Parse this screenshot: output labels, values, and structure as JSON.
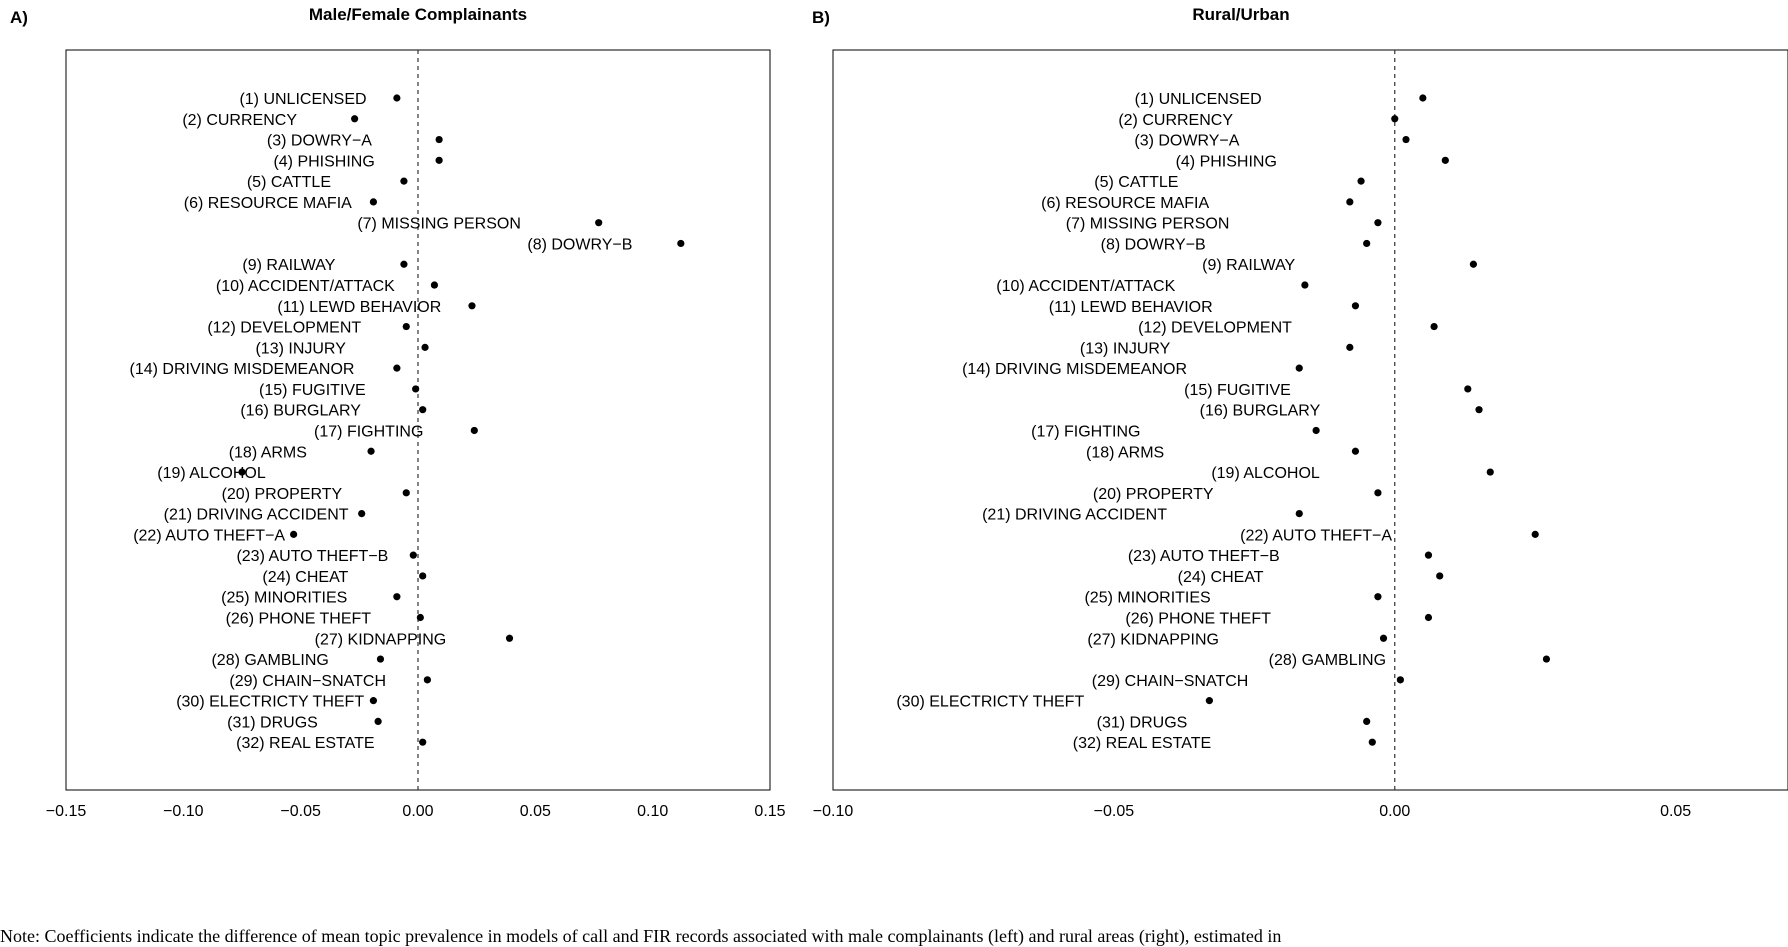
{
  "chart_data": [
    {
      "type": "scatter",
      "panel_label": "A)",
      "title": "Male/Female Complainants",
      "xlabel": "",
      "ylabel": "",
      "xlim": [
        -0.15,
        0.15
      ],
      "xticks": [
        -0.15,
        -0.1,
        -0.05,
        0.0,
        0.05,
        0.1,
        0.15
      ],
      "xtick_labels": [
        "−0.15",
        "−0.10",
        "−0.05",
        "0.00",
        "0.05",
        "0.10",
        "0.15"
      ],
      "reference_line": 0,
      "grid": false,
      "categories": [
        "(1) UNLICENSED",
        "(2) CURRENCY",
        "(3) DOWRY−A",
        "(4) PHISHING",
        "(5) CATTLE",
        "(6) RESOURCE MAFIA",
        "(7) MISSING PERSON",
        "(8) DOWRY−B",
        "(9) RAILWAY",
        "(10) ACCIDENT/ATTACK",
        "(11) LEWD BEHAVIOR",
        "(12) DEVELOPMENT",
        "(13) INJURY",
        "(14) DRIVING MISDEMEANOR",
        "(15) FUGITIVE",
        "(16) BURGLARY",
        "(17) FIGHTING",
        "(18) ARMS",
        "(19) ALCOHOL",
        "(20) PROPERTY",
        "(21) DRIVING ACCIDENT",
        "(22) AUTO THEFT−A",
        "(23) AUTO THEFT−B",
        "(24) CHEAT",
        "(25) MINORITIES",
        "(26) PHONE THEFT",
        "(27) KIDNAPPING",
        "(28) GAMBLING",
        "(29) CHAIN−SNATCH",
        "(30) ELECTRICTY THEFT",
        "(31) DRUGS",
        "(32) REAL ESTATE"
      ],
      "values": [
        -0.009,
        -0.027,
        0.009,
        0.009,
        -0.006,
        -0.019,
        0.077,
        0.112,
        -0.006,
        0.007,
        0.023,
        -0.005,
        0.003,
        -0.009,
        -0.001,
        0.002,
        0.024,
        -0.02,
        -0.075,
        -0.005,
        -0.024,
        -0.053,
        -0.002,
        0.002,
        -0.009,
        0.001,
        0.039,
        -0.016,
        0.004,
        -0.019,
        -0.017,
        0.002
      ],
      "label_anchor_values": [
        -0.049,
        -0.076,
        -0.042,
        -0.04,
        -0.055,
        -0.064,
        0.009,
        0.069,
        -0.055,
        -0.048,
        -0.025,
        -0.057,
        -0.05,
        -0.075,
        -0.045,
        -0.05,
        -0.021,
        -0.064,
        -0.088,
        -0.058,
        -0.069,
        -0.089,
        -0.045,
        -0.048,
        -0.057,
        -0.051,
        -0.016,
        -0.063,
        -0.047,
        -0.063,
        -0.062,
        -0.048
      ]
    },
    {
      "type": "scatter",
      "panel_label": "B)",
      "title": "Rural/Urban",
      "xlabel": "",
      "ylabel": "",
      "xlim": [
        -0.1,
        0.07
      ],
      "xticks": [
        -0.1,
        -0.05,
        0.0,
        0.05
      ],
      "xtick_labels": [
        "−0.10",
        "−0.05",
        "0.00",
        "0.05"
      ],
      "reference_line": 0,
      "grid": false,
      "categories": [
        "(1) UNLICENSED",
        "(2) CURRENCY",
        "(3) DOWRY−A",
        "(4) PHISHING",
        "(5) CATTLE",
        "(6) RESOURCE MAFIA",
        "(7) MISSING PERSON",
        "(8) DOWRY−B",
        "(9) RAILWAY",
        "(10) ACCIDENT/ATTACK",
        "(11) LEWD BEHAVIOR",
        "(12) DEVELOPMENT",
        "(13) INJURY",
        "(14) DRIVING MISDEMEANOR",
        "(15) FUGITIVE",
        "(16) BURGLARY",
        "(17) FIGHTING",
        "(18) ARMS",
        "(19) ALCOHOL",
        "(20) PROPERTY",
        "(21) DRIVING ACCIDENT",
        "(22) AUTO THEFT−A",
        "(23) AUTO THEFT−B",
        "(24) CHEAT",
        "(25) MINORITIES",
        "(26) PHONE THEFT",
        "(27) KIDNAPPING",
        "(28) GAMBLING",
        "(29) CHAIN−SNATCH",
        "(30) ELECTRICTY THEFT",
        "(31) DRUGS",
        "(32) REAL ESTATE"
      ],
      "values": [
        0.005,
        0.0,
        0.002,
        0.009,
        -0.006,
        -0.008,
        -0.003,
        -0.005,
        0.014,
        -0.016,
        -0.007,
        0.007,
        -0.008,
        -0.017,
        0.013,
        0.015,
        -0.014,
        -0.007,
        0.017,
        -0.003,
        -0.017,
        0.025,
        0.006,
        0.008,
        -0.003,
        0.006,
        -0.002,
        0.027,
        0.001,
        -0.033,
        -0.005,
        -0.004
      ],
      "label_anchor_values": [
        -0.035,
        -0.039,
        -0.037,
        -0.03,
        -0.046,
        -0.048,
        -0.044,
        -0.043,
        -0.026,
        -0.055,
        -0.047,
        -0.032,
        -0.048,
        -0.057,
        -0.028,
        -0.024,
        -0.055,
        -0.048,
        -0.023,
        -0.043,
        -0.057,
        -0.014,
        -0.034,
        -0.031,
        -0.044,
        -0.035,
        -0.043,
        -0.012,
        -0.04,
        -0.072,
        -0.045,
        -0.045
      ]
    }
  ],
  "caption": "Note: Coefficients indicate the difference of mean topic prevalence in models of call and FIR records associated with male complainants (left) and rural areas (right), estimated in"
}
